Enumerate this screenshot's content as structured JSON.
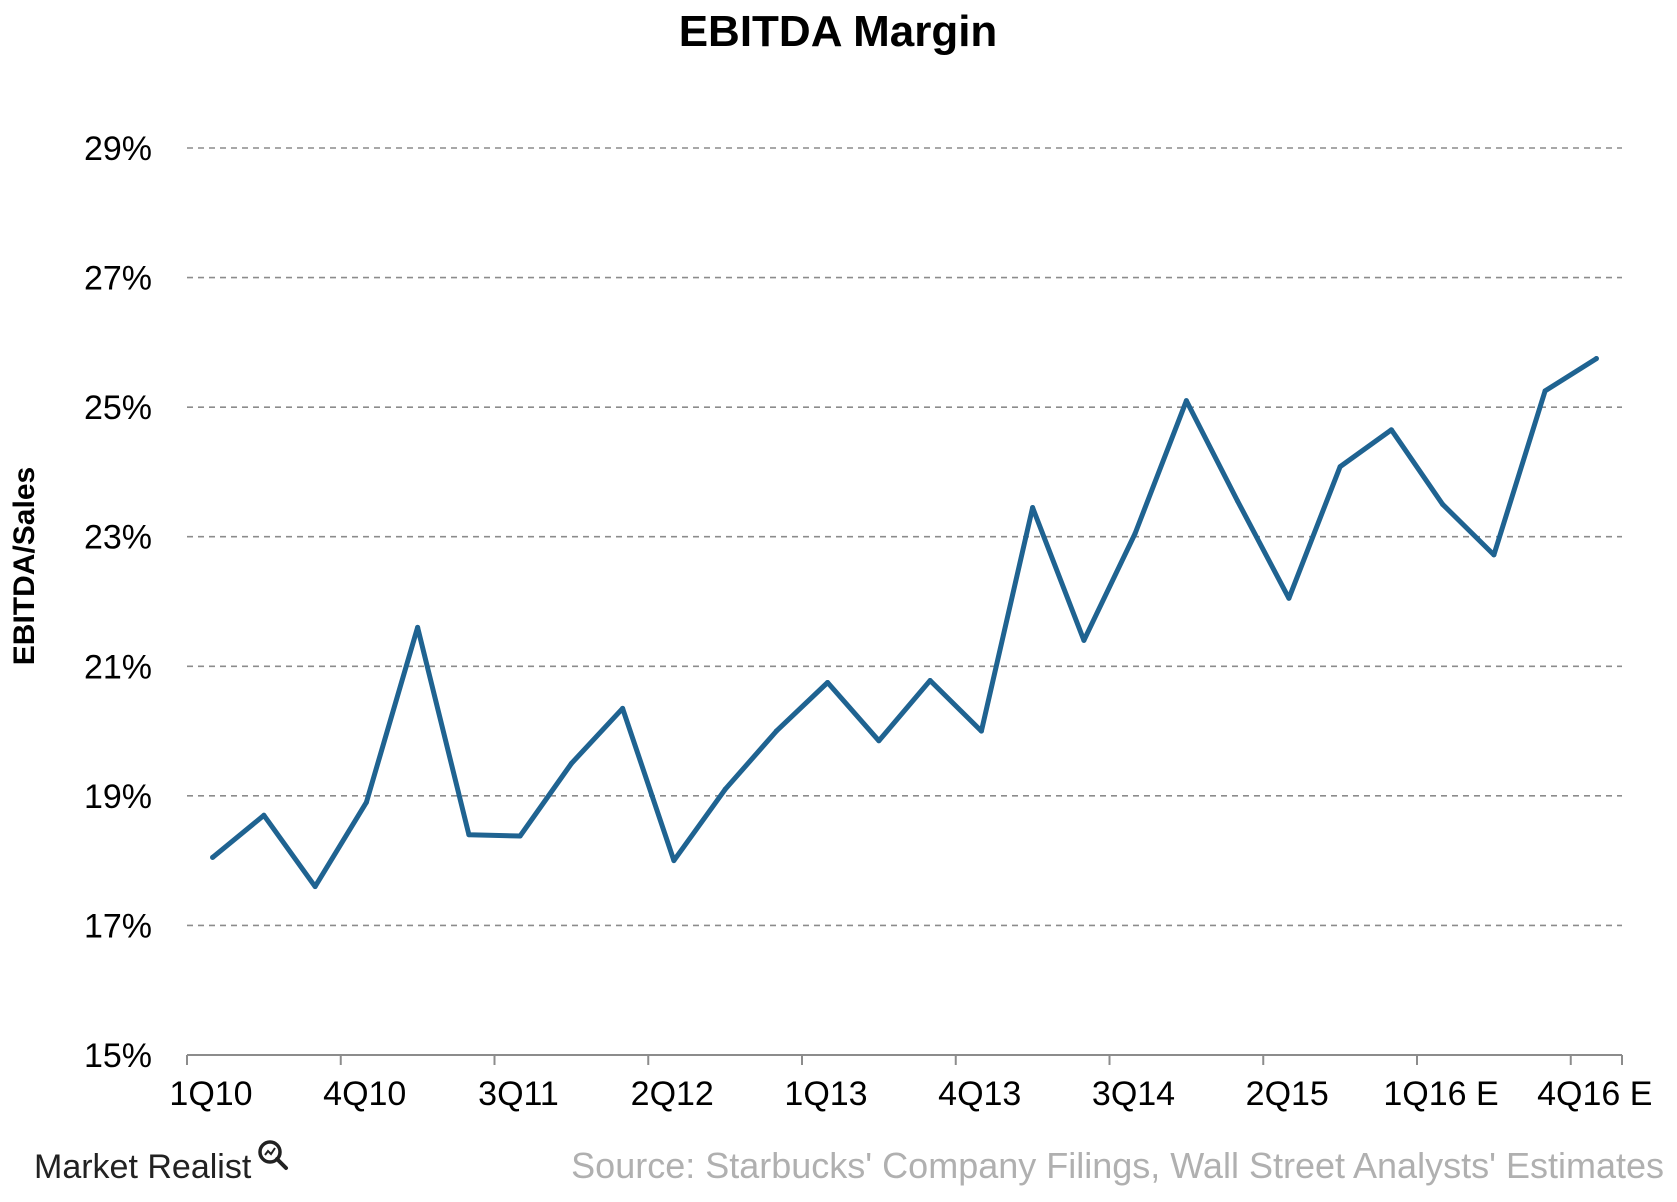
{
  "chart_data": {
    "type": "line",
    "title": "EBITDA Margin",
    "xlabel": "",
    "ylabel": "EBITDA/Sales",
    "ylim": [
      15,
      29
    ],
    "yticks": [
      15,
      17,
      19,
      21,
      23,
      25,
      27,
      29
    ],
    "ytick_labels": [
      "15%",
      "17%",
      "19%",
      "21%",
      "23%",
      "25%",
      "27%",
      "29%"
    ],
    "grid": true,
    "categories": [
      "1Q10",
      "2Q10",
      "3Q10",
      "4Q10",
      "1Q11",
      "2Q11",
      "3Q11",
      "4Q11",
      "1Q12",
      "2Q12",
      "3Q12",
      "4Q12",
      "1Q13",
      "2Q13",
      "3Q13",
      "4Q13",
      "1Q14",
      "2Q14",
      "3Q14",
      "4Q14",
      "1Q15",
      "2Q15",
      "3Q15",
      "4Q15",
      "1Q16 E",
      "2Q16 E",
      "3Q16 E",
      "4Q16 E"
    ],
    "xtick_labels": [
      "1Q10",
      "4Q10",
      "3Q11",
      "2Q12",
      "1Q13",
      "4Q13",
      "3Q14",
      "2Q15",
      "1Q16 E",
      "4Q16 E"
    ],
    "series": [
      {
        "name": "",
        "color": "#1f6391",
        "values": [
          18.05,
          18.7,
          17.6,
          18.9,
          21.6,
          18.4,
          18.38,
          19.5,
          20.35,
          18.0,
          19.1,
          20.0,
          20.75,
          19.85,
          20.78,
          20.0,
          23.45,
          21.4,
          23.05,
          25.1,
          23.55,
          22.05,
          24.08,
          24.65,
          23.5,
          22.72,
          25.25,
          25.75
        ]
      }
    ]
  },
  "footer": {
    "brand": "Market Realist",
    "brand_icon": "magnifier-icon",
    "source": "Source: Starbucks' Company Filings, Wall Street Analysts' Estimates"
  }
}
